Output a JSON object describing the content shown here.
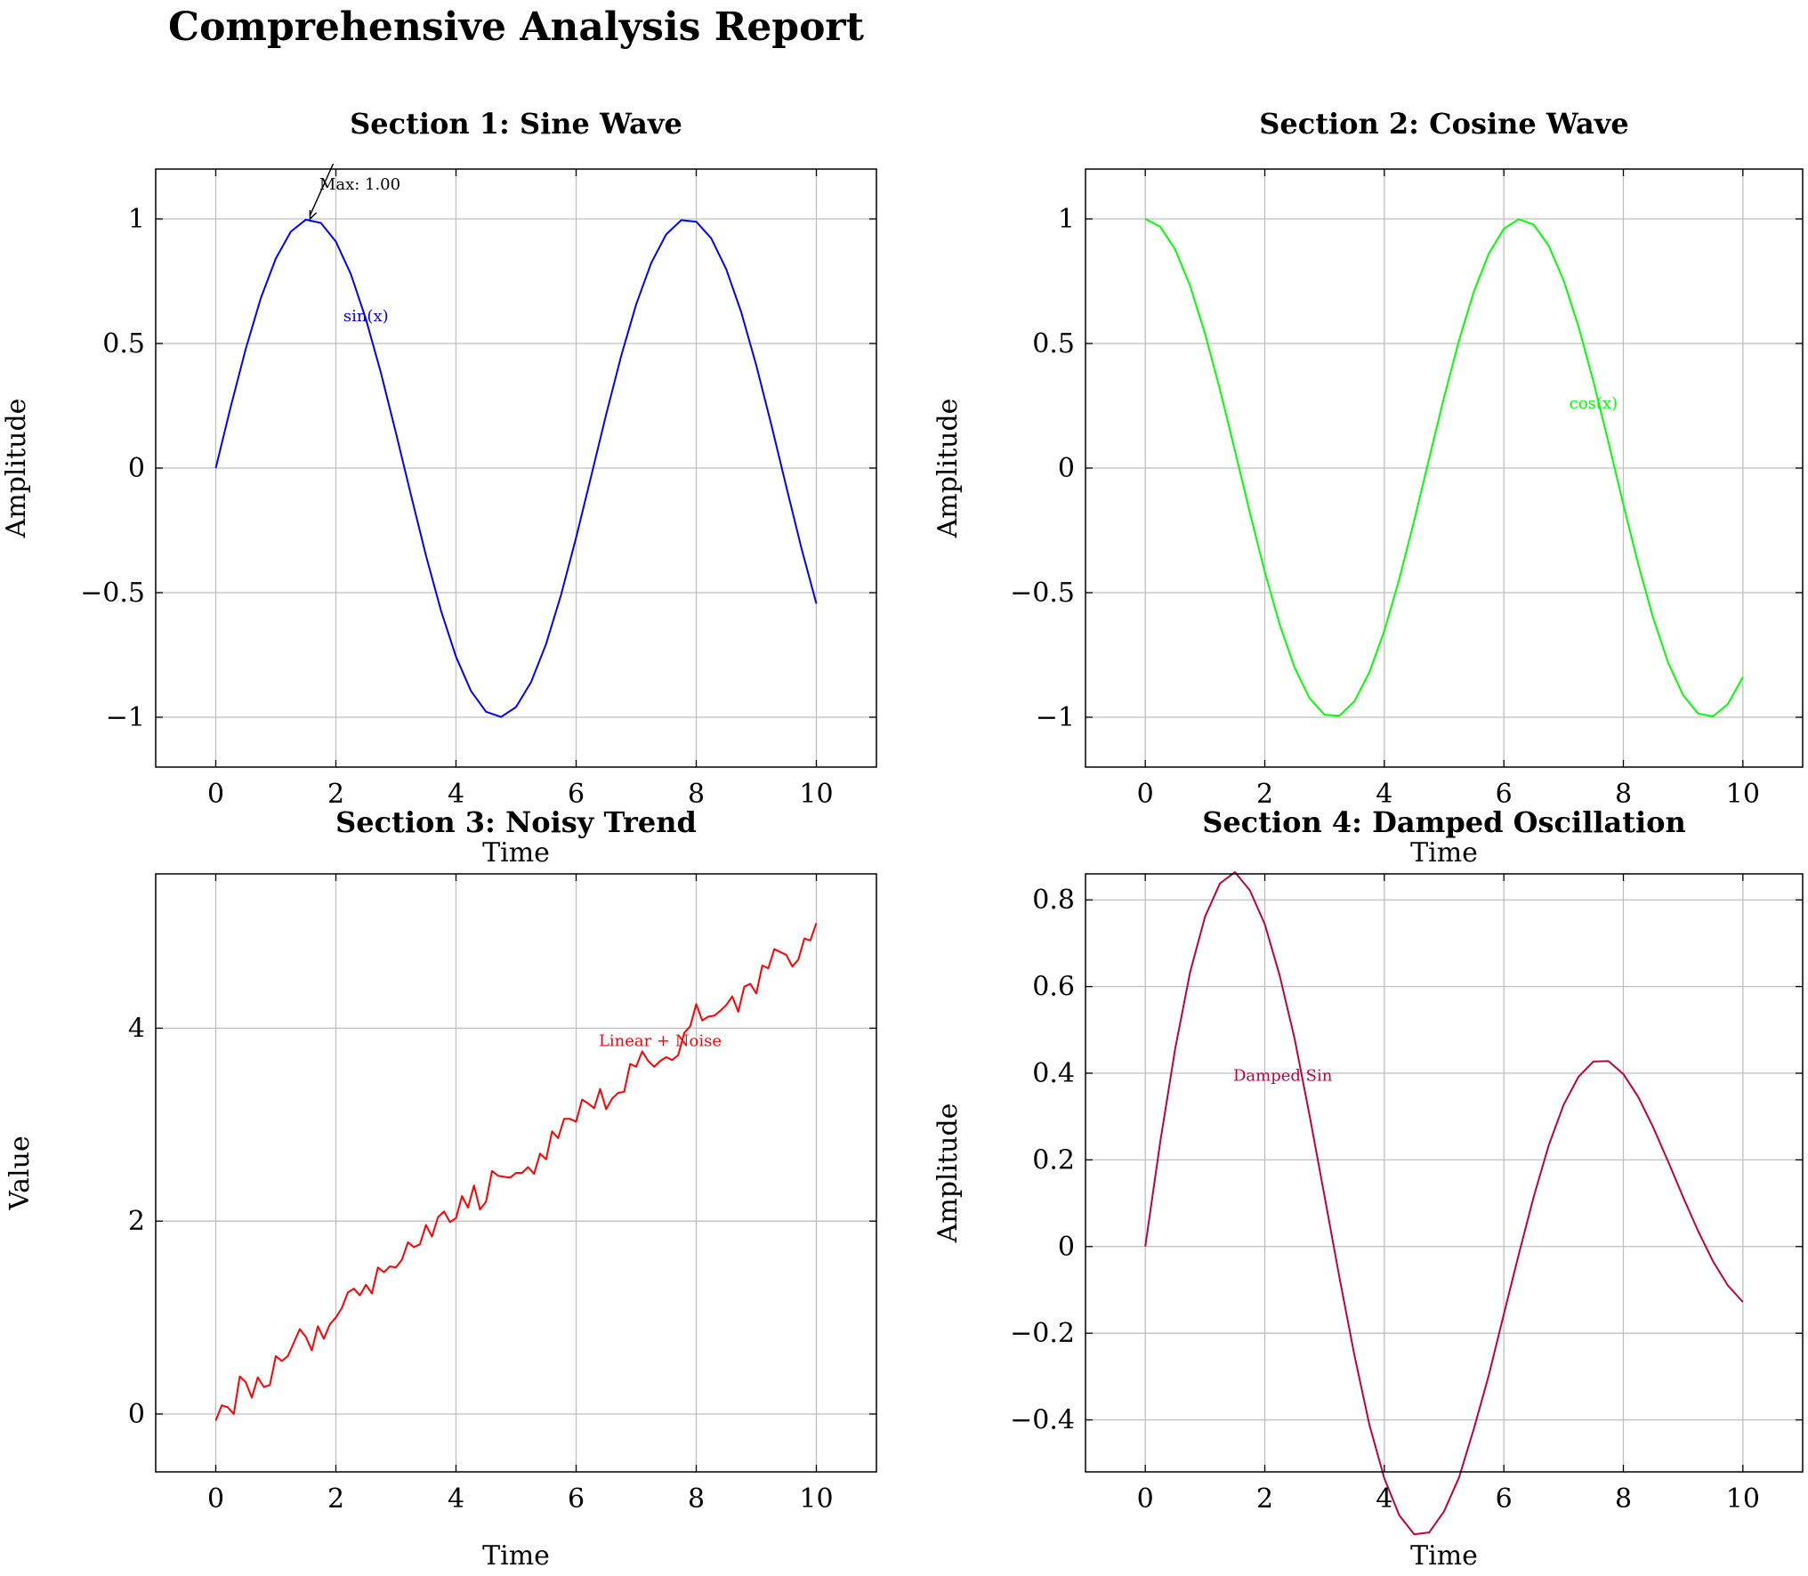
{
  "report_title": "Comprehensive Analysis Report",
  "colors": {
    "sine": "#0000ff",
    "cosine": "#00ff00",
    "noise": "#ff0000",
    "damped": "#bf0040",
    "grid": "#bfbfbf",
    "axis": "#000000"
  },
  "chart_data": [
    {
      "type": "line",
      "title": "Section 1: Sine Wave",
      "xlabel": "Time",
      "ylabel": "Amplitude",
      "xlim": [
        -1,
        11
      ],
      "ylim": [
        -1.2,
        1.2
      ],
      "xticks": [
        0,
        2,
        4,
        6,
        8,
        10
      ],
      "yticks": [
        -1,
        -0.5,
        0,
        0.5,
        1
      ],
      "xtick_labels": [
        "0",
        "2",
        "4",
        "6",
        "8",
        "10"
      ],
      "ytick_labels": [
        "−1",
        "−0.5",
        "0",
        "0.5",
        "1"
      ],
      "grid": true,
      "series": [
        {
          "name": "sin(x)",
          "color": "#0000ff",
          "x": [
            0,
            0.25,
            0.5,
            0.75,
            1,
            1.25,
            1.5,
            1.75,
            2,
            2.25,
            2.5,
            2.75,
            3,
            3.25,
            3.5,
            3.75,
            4,
            4.25,
            4.5,
            4.75,
            5,
            5.25,
            5.5,
            5.75,
            6,
            6.25,
            6.5,
            6.75,
            7,
            7.25,
            7.5,
            7.75,
            8,
            8.25,
            8.5,
            8.75,
            9,
            9.25,
            9.5,
            9.75,
            10
          ],
          "y": [
            0,
            0.247,
            0.479,
            0.682,
            0.841,
            0.949,
            0.997,
            0.984,
            0.909,
            0.778,
            0.598,
            0.382,
            0.141,
            -0.108,
            -0.351,
            -0.572,
            -0.757,
            -0.895,
            -0.978,
            -0.999,
            -0.959,
            -0.859,
            -0.706,
            -0.508,
            -0.279,
            -0.033,
            0.215,
            0.45,
            0.657,
            0.823,
            0.938,
            0.995,
            0.989,
            0.922,
            0.798,
            0.625,
            0.412,
            0.174,
            -0.075,
            -0.32,
            -0.544
          ]
        }
      ],
      "annotations": [
        {
          "text": "Max: 1.00",
          "x": 2.4,
          "y": 1.14,
          "arrow_to": [
            1.57,
            1.0
          ],
          "color": "#000000"
        },
        {
          "text": "sin(x)",
          "x": 2.5,
          "y": 0.61,
          "color": "#0000ff"
        }
      ]
    },
    {
      "type": "line",
      "title": "Section 2: Cosine Wave",
      "xlabel": "Time",
      "ylabel": "Amplitude",
      "xlim": [
        -1,
        11
      ],
      "ylim": [
        -1.2,
        1.2
      ],
      "xticks": [
        0,
        2,
        4,
        6,
        8,
        10
      ],
      "yticks": [
        -1,
        -0.5,
        0,
        0.5,
        1
      ],
      "xtick_labels": [
        "0",
        "2",
        "4",
        "6",
        "8",
        "10"
      ],
      "ytick_labels": [
        "−1",
        "−0.5",
        "0",
        "0.5",
        "1"
      ],
      "grid": true,
      "series": [
        {
          "name": "cos(x)",
          "color": "#00ff00",
          "x": [
            0,
            0.25,
            0.5,
            0.75,
            1,
            1.25,
            1.5,
            1.75,
            2,
            2.25,
            2.5,
            2.75,
            3,
            3.25,
            3.5,
            3.75,
            4,
            4.25,
            4.5,
            4.75,
            5,
            5.25,
            5.5,
            5.75,
            6,
            6.25,
            6.5,
            6.75,
            7,
            7.25,
            7.5,
            7.75,
            8,
            8.25,
            8.5,
            8.75,
            9,
            9.25,
            9.5,
            9.75,
            10
          ],
          "y": [
            1,
            0.969,
            0.878,
            0.732,
            0.54,
            0.315,
            0.071,
            -0.178,
            -0.416,
            -0.628,
            -0.801,
            -0.924,
            -0.99,
            -0.994,
            -0.936,
            -0.82,
            -0.654,
            -0.446,
            -0.211,
            0.038,
            0.284,
            0.512,
            0.709,
            0.861,
            0.96,
            0.999,
            0.977,
            0.893,
            0.754,
            0.568,
            0.347,
            0.105,
            -0.146,
            -0.386,
            -0.602,
            -0.781,
            -0.911,
            -0.985,
            -0.997,
            -0.947,
            -0.839
          ]
        }
      ],
      "annotations": [
        {
          "text": "cos(x)",
          "x": 7.5,
          "y": 0.26,
          "color": "#00ff00"
        }
      ]
    },
    {
      "type": "line",
      "title": "Section 3: Noisy Trend",
      "xlabel": "Time",
      "ylabel": "Value",
      "xlim": [
        -1,
        11
      ],
      "ylim": [
        -0.6,
        5.6
      ],
      "xticks": [
        0,
        2,
        4,
        6,
        8,
        10
      ],
      "yticks": [
        0,
        2,
        4
      ],
      "xtick_labels": [
        "0",
        "2",
        "4",
        "6",
        "8",
        "10"
      ],
      "ytick_labels": [
        "0",
        "2",
        "4"
      ],
      "grid": true,
      "series": [
        {
          "name": "Linear + Noise",
          "color": "#ff0000",
          "x": [
            0,
            0.1,
            0.2,
            0.3,
            0.4,
            0.5,
            0.6,
            0.7,
            0.8,
            0.9,
            1,
            1.1,
            1.2,
            1.3,
            1.4,
            1.5,
            1.6,
            1.7,
            1.8,
            1.9,
            2,
            2.1,
            2.2,
            2.3,
            2.4,
            2.5,
            2.6,
            2.7,
            2.8,
            2.9,
            3,
            3.1,
            3.2,
            3.3,
            3.4,
            3.5,
            3.6,
            3.7,
            3.8,
            3.9,
            4,
            4.1,
            4.2,
            4.3,
            4.4,
            4.5,
            4.6,
            4.7,
            4.8,
            4.9,
            5,
            5.1,
            5.2,
            5.3,
            5.4,
            5.5,
            5.6,
            5.7,
            5.8,
            5.9,
            6,
            6.1,
            6.2,
            6.3,
            6.4,
            6.5,
            6.6,
            6.7,
            6.8,
            6.9,
            7,
            7.1,
            7.2,
            7.3,
            7.4,
            7.5,
            7.6,
            7.7,
            7.8,
            7.9,
            8,
            8.1,
            8.2,
            8.3,
            8.4,
            8.5,
            8.6,
            8.7,
            8.8,
            8.9,
            9,
            9.1,
            9.2,
            9.3,
            9.4,
            9.5,
            9.6,
            9.7,
            9.8,
            9.9,
            10
          ],
          "y": [
            -0.07,
            0.09,
            0.07,
            0.0,
            0.39,
            0.33,
            0.17,
            0.38,
            0.28,
            0.3,
            0.6,
            0.55,
            0.6,
            0.74,
            0.88,
            0.8,
            0.66,
            0.91,
            0.78,
            0.93,
            1.0,
            1.1,
            1.26,
            1.3,
            1.23,
            1.34,
            1.25,
            1.52,
            1.47,
            1.53,
            1.52,
            1.6,
            1.78,
            1.73,
            1.76,
            1.96,
            1.84,
            2.04,
            2.1,
            1.99,
            2.03,
            2.26,
            2.14,
            2.37,
            2.12,
            2.2,
            2.52,
            2.47,
            2.46,
            2.45,
            2.5,
            2.5,
            2.56,
            2.49,
            2.7,
            2.64,
            2.93,
            2.86,
            3.06,
            3.06,
            3.03,
            3.26,
            3.22,
            3.17,
            3.37,
            3.16,
            3.27,
            3.33,
            3.34,
            3.63,
            3.6,
            3.76,
            3.66,
            3.6,
            3.66,
            3.7,
            3.67,
            3.72,
            3.95,
            4.02,
            4.25,
            4.08,
            4.12,
            4.13,
            4.18,
            4.24,
            4.33,
            4.17,
            4.43,
            4.46,
            4.36,
            4.65,
            4.62,
            4.82,
            4.79,
            4.76,
            4.64,
            4.71,
            4.93,
            4.91,
            5.09
          ]
        }
      ],
      "annotations": [
        {
          "text": "Linear + Noise",
          "x": 7.4,
          "y": 3.87,
          "color": "#ff0000"
        }
      ]
    },
    {
      "type": "line",
      "title": "Section 4: Damped Oscillation",
      "xlabel": "Time",
      "ylabel": "Amplitude",
      "xlim": [
        -1,
        11
      ],
      "ylim": [
        -0.52,
        0.86
      ],
      "xticks": [
        0,
        2,
        4,
        6,
        8,
        10
      ],
      "yticks": [
        -0.4,
        -0.2,
        0,
        0.2,
        0.4,
        0.6,
        0.8
      ],
      "xtick_labels": [
        "0",
        "2",
        "4",
        "6",
        "8",
        "10"
      ],
      "ytick_labels": [
        "−0.4",
        "−0.2",
        "0",
        "0.2",
        "0.4",
        "0.6",
        "0.8"
      ],
      "grid": true,
      "series": [
        {
          "name": "Damped Sin",
          "color": "#bf0040",
          "x": [
            0,
            0.25,
            0.5,
            0.75,
            1,
            1.25,
            1.5,
            1.75,
            2,
            2.25,
            2.5,
            2.75,
            3,
            3.25,
            3.5,
            3.75,
            4,
            4.25,
            4.5,
            4.75,
            5,
            5.25,
            5.5,
            5.75,
            6,
            6.25,
            6.5,
            6.75,
            7,
            7.25,
            7.5,
            7.75,
            8,
            8.25,
            8.5,
            8.75,
            9,
            9.25,
            9.5,
            9.75,
            10
          ],
          "y": [
            0,
            0.241,
            0.456,
            0.633,
            0.761,
            0.838,
            0.864,
            0.822,
            0.744,
            0.625,
            0.479,
            0.302,
            0.116,
            -0.072,
            -0.251,
            -0.411,
            -0.535,
            -0.62,
            -0.664,
            -0.66,
            -0.611,
            -0.533,
            -0.42,
            -0.296,
            -0.156,
            -0.018,
            0.115,
            0.233,
            0.327,
            0.392,
            0.427,
            0.428,
            0.398,
            0.345,
            0.275,
            0.196,
            0.114,
            0.036,
            -0.034,
            -0.09,
            -0.128
          ]
        }
      ],
      "annotations": [
        {
          "text": "Damped Sin",
          "x": 2.3,
          "y": 0.395,
          "color": "#bf0040"
        }
      ]
    }
  ]
}
